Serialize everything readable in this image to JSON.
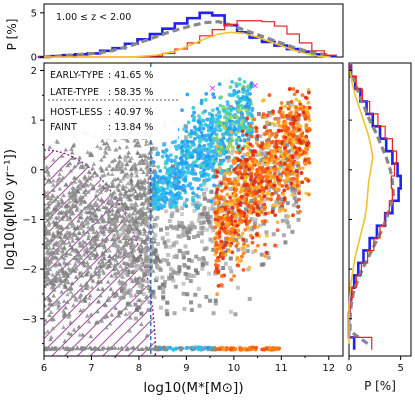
{
  "chart_data": [
    {
      "panel": "top-histogram",
      "type": "line",
      "ylabel": "P [%]",
      "annotation": "1.00 ≤ z < 2.00",
      "xlim": [
        6,
        12
      ],
      "ylim": [
        0,
        6
      ],
      "yticks": [
        0,
        5
      ],
      "x": [
        6.0,
        6.25,
        6.5,
        6.75,
        7.0,
        7.25,
        7.5,
        7.75,
        8.0,
        8.25,
        8.5,
        8.75,
        9.0,
        9.25,
        9.5,
        9.75,
        10.0,
        10.25,
        10.5,
        10.75,
        11.0,
        11.25,
        11.5,
        11.75
      ],
      "series": [
        {
          "style": "blue-solid",
          "color": "#2222ee",
          "values": [
            0.0,
            0.1,
            0.2,
            0.3,
            0.4,
            0.7,
            1.0,
            1.5,
            2.0,
            2.6,
            3.2,
            3.8,
            4.4,
            5.0,
            4.7,
            3.6,
            2.8,
            2.2,
            1.7,
            1.3,
            0.9,
            0.6,
            0.3,
            0.1
          ]
        },
        {
          "style": "grey-dashed",
          "color": "#888888",
          "values": [
            0.0,
            0.1,
            0.2,
            0.3,
            0.4,
            0.6,
            0.9,
            1.3,
            1.8,
            2.3,
            2.8,
            3.2,
            3.6,
            3.9,
            4.0,
            3.6,
            3.1,
            2.6,
            2.1,
            1.6,
            1.1,
            0.7,
            0.4,
            0.2
          ]
        },
        {
          "style": "red-step",
          "color": "#ee2222",
          "values": [
            0.0,
            0.0,
            0.0,
            0.0,
            0.0,
            0.0,
            0.0,
            0.0,
            0.0,
            0.1,
            0.4,
            0.9,
            1.6,
            2.4,
            3.1,
            3.7,
            4.1,
            4.1,
            4.0,
            3.5,
            2.6,
            1.6,
            0.7,
            0.2
          ]
        },
        {
          "style": "yellow-step",
          "color": "#f2c12e",
          "values": [
            0.0,
            0.0,
            0.0,
            0.0,
            0.0,
            0.0,
            0.0,
            0.0,
            0.1,
            0.2,
            0.5,
            0.9,
            1.5,
            2.1,
            2.6,
            2.8,
            2.7,
            2.3,
            1.8,
            1.3,
            0.8,
            0.4,
            0.1,
            0.0
          ]
        }
      ]
    },
    {
      "panel": "main-scatter",
      "type": "scatter",
      "xlabel": "log10(M*[M⊙])",
      "ylabel": "log10(φ[M⊙ yr⁻¹])",
      "xlim": [
        6,
        12.3
      ],
      "ylim": [
        -3.75,
        2.15
      ],
      "xticks": [
        6,
        7,
        8,
        9,
        10,
        11,
        12
      ],
      "yticks": [
        -3,
        -2,
        -1,
        0,
        1,
        2
      ],
      "grid": false,
      "legend_text": [
        {
          "label": "EARLY-TYPE",
          "value": ": 41.65 %"
        },
        {
          "label": "LATE-TYPE",
          "value": ": 58.35 %"
        },
        {
          "label": "HOST-LESS",
          "value": ": 40.97 %"
        },
        {
          "label": "FAINT",
          "value": ": 13.84 %"
        }
      ],
      "populations": [
        {
          "name": "hostless",
          "marker": "grey triangles",
          "x_range": [
            6.0,
            8.3
          ],
          "y_range": [
            -3.6,
            0.9
          ]
        },
        {
          "name": "faint",
          "marker": "grey squares",
          "x_range": [
            7.5,
            11.5
          ],
          "y_range": [
            -3.6,
            1.4
          ]
        },
        {
          "name": "late-type",
          "marker": "blue-cyan circles",
          "x_range": [
            8.2,
            10.2
          ],
          "y_range": [
            -0.6,
            1.8
          ]
        },
        {
          "name": "early-type",
          "marker": "orange-red circles",
          "x_range": [
            9.6,
            11.7
          ],
          "y_range": [
            -2.6,
            1.6
          ]
        },
        {
          "name": "bottom band",
          "y": -3.6,
          "x_range": [
            6.0,
            11.0
          ]
        }
      ],
      "vertical_dashed_line_x": 8.25
    },
    {
      "panel": "right-histogram",
      "type": "line",
      "xlabel": "P [%]",
      "xlim": [
        0,
        6
      ],
      "xticks": [
        0,
        5
      ],
      "y": [
        -3.5,
        -3.25,
        -3.0,
        -2.75,
        -2.5,
        -2.25,
        -2.0,
        -1.75,
        -1.5,
        -1.25,
        -1.0,
        -0.75,
        -0.5,
        -0.25,
        0.0,
        0.25,
        0.5,
        0.75,
        1.0,
        1.25,
        1.5,
        1.75,
        2.0
      ],
      "series": [
        {
          "style": "blue-solid",
          "color": "#2222ee",
          "values": [
            0.5,
            0.0,
            0.0,
            0.05,
            0.2,
            0.5,
            0.9,
            1.4,
            2.0,
            2.7,
            3.5,
            4.2,
            4.8,
            5.0,
            4.7,
            4.2,
            3.6,
            3.0,
            2.3,
            1.7,
            1.1,
            0.6,
            0.2
          ]
        },
        {
          "style": "grey-dashed",
          "color": "#888888",
          "values": [
            1.8,
            0.1,
            0.1,
            0.2,
            0.4,
            0.8,
            1.3,
            1.9,
            2.5,
            3.1,
            3.6,
            4.0,
            4.3,
            4.2,
            4.0,
            3.6,
            3.1,
            2.6,
            2.0,
            1.5,
            1.0,
            0.6,
            0.2
          ]
        },
        {
          "style": "red-step",
          "color": "#ee2222",
          "values": [
            2.2,
            0.0,
            0.0,
            0.1,
            0.3,
            0.7,
            1.2,
            1.8,
            2.4,
            3.0,
            3.5,
            3.9,
            4.2,
            4.1,
            4.4,
            4.6,
            4.2,
            3.5,
            2.8,
            2.0,
            1.3,
            0.7,
            0.2
          ]
        },
        {
          "style": "yellow-step",
          "color": "#f2c12e",
          "values": [
            0.0,
            0.0,
            0.0,
            0.0,
            0.1,
            0.2,
            0.4,
            0.6,
            0.9,
            1.2,
            1.5,
            1.7,
            1.8,
            1.9,
            2.1,
            2.3,
            2.1,
            1.8,
            1.4,
            1.0,
            0.6,
            0.3,
            0.1
          ]
        }
      ]
    }
  ]
}
